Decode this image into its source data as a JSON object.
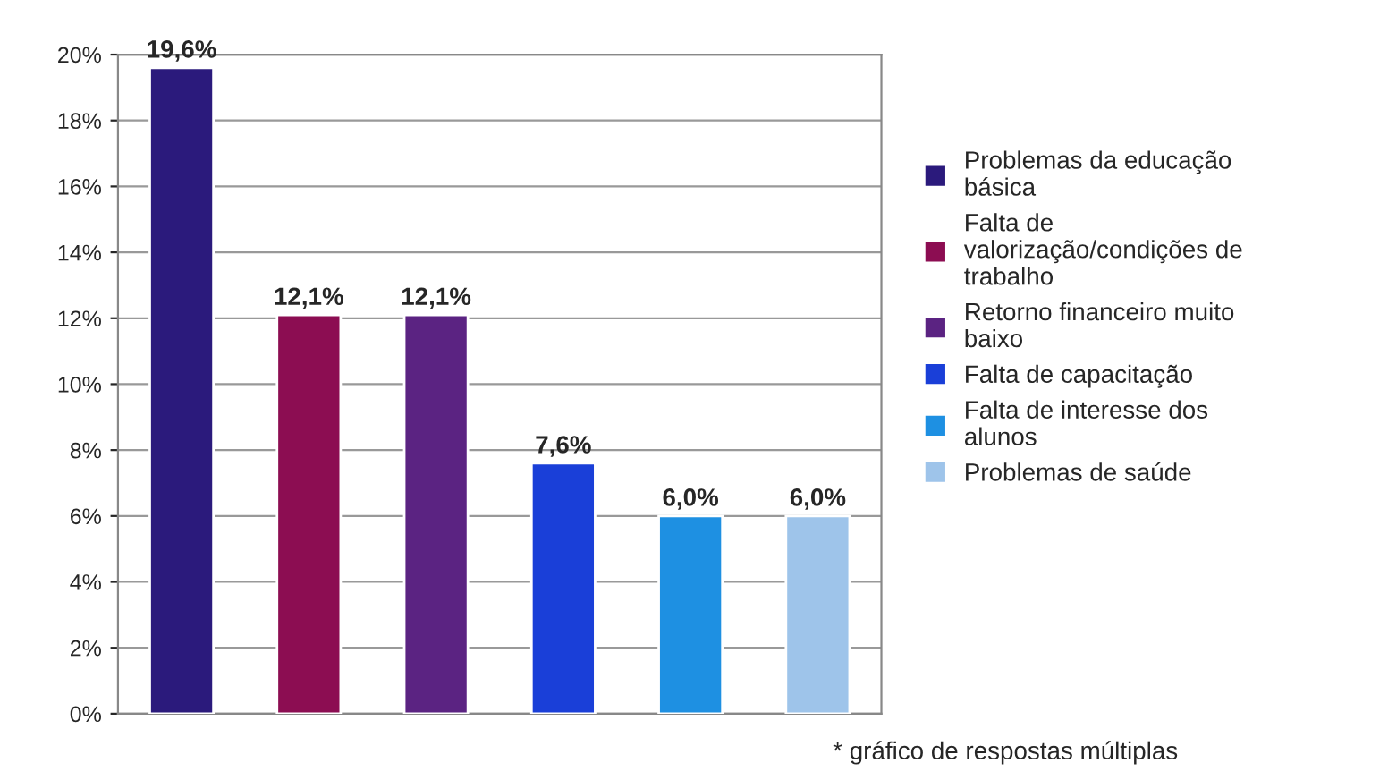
{
  "chart_data": {
    "type": "bar",
    "categories": [
      null,
      null,
      null,
      null,
      null,
      null
    ],
    "series": [
      {
        "name": "Problemas da educação básica",
        "color": "#2b1a7c",
        "values": [
          19.6,
          null,
          null,
          null,
          null,
          null
        ],
        "value_labels": [
          "19,6%",
          null,
          null,
          null,
          null,
          null
        ]
      },
      {
        "name": "Falta de valorização/condições de trabalho",
        "color": "#8c0d52",
        "values": [
          null,
          12.1,
          null,
          null,
          null,
          null
        ],
        "value_labels": [
          null,
          "12,1%",
          null,
          null,
          null,
          null
        ]
      },
      {
        "name": "Retorno financeiro muito baixo",
        "color": "#5b2382",
        "values": [
          null,
          null,
          12.1,
          null,
          null,
          null
        ],
        "value_labels": [
          null,
          null,
          "12,1%",
          null,
          null,
          null
        ]
      },
      {
        "name": "Falta de capacitação",
        "color": "#1a3fd8",
        "values": [
          null,
          null,
          null,
          7.6,
          null,
          null
        ],
        "value_labels": [
          null,
          null,
          null,
          "7,6%",
          null,
          null
        ]
      },
      {
        "name": "Falta de interesse dos alunos",
        "color": "#1e90e2",
        "values": [
          null,
          null,
          null,
          null,
          6.0,
          null
        ],
        "value_labels": [
          null,
          null,
          null,
          null,
          "6,0%",
          null
        ]
      },
      {
        "name": "Problemas de saúde",
        "color": "#9ec4ea",
        "values": [
          null,
          null,
          null,
          null,
          null,
          6.0
        ],
        "value_labels": [
          null,
          null,
          null,
          null,
          null,
          "6,0%"
        ]
      }
    ],
    "ylim": [
      0,
      20
    ],
    "yticks": [
      {
        "value": 0,
        "label": "0%"
      },
      {
        "value": 2,
        "label": "2%"
      },
      {
        "value": 4,
        "label": "4%"
      },
      {
        "value": 6,
        "label": "6%"
      },
      {
        "value": 8,
        "label": "8%"
      },
      {
        "value": 10,
        "label": "10%"
      },
      {
        "value": 12,
        "label": "12%"
      },
      {
        "value": 14,
        "label": "14%"
      },
      {
        "value": 16,
        "label": "16%"
      },
      {
        "value": 18,
        "label": "18%"
      },
      {
        "value": 20,
        "label": "20%"
      }
    ],
    "grid": "y",
    "legend": "right",
    "tick_labels": "y",
    "annotations": [
      "* gráfico de respostas múltiplas"
    ]
  }
}
